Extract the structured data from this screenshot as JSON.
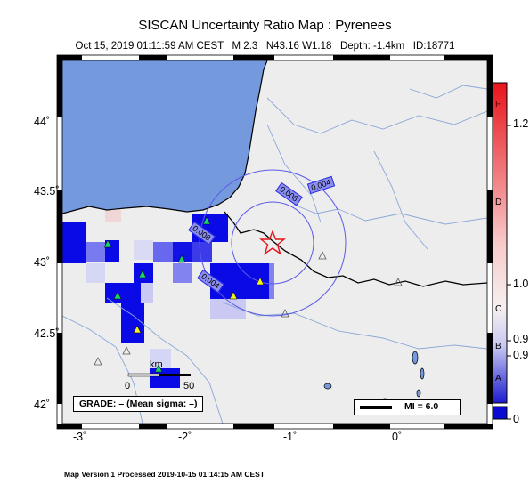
{
  "title": "SISCAN Uncertainty Ratio Map : Pyrenees",
  "subtitle": "Oct 15, 2019 01:11:59 AM CEST   M 2.3   N43.16 W1.18   Depth: -1.4km   ID:18771",
  "footer": "Map Version 1 Processed 2019-10-15 01:14:15 AM CEST",
  "axes": {
    "lat_labels": [
      "44˚",
      "43.5˚",
      "43˚",
      "42.5˚",
      "42˚"
    ],
    "lon_labels": [
      "-3˚",
      "-2˚",
      "-1˚",
      "0˚"
    ]
  },
  "colorbar": {
    "letter_labels": [
      "F",
      "D",
      "C",
      "B",
      "A"
    ],
    "value_labels": [
      "1.2",
      "1.0",
      "0.9",
      "0.9",
      "0"
    ],
    "colors": {
      "top": "#e8141b",
      "middle": "#f7f0f0",
      "bottom": "#1b1bcf",
      "base": "#0a0ad2"
    }
  },
  "contour_labels": [
    "0.004",
    "0.008",
    "0.008",
    "0.004"
  ],
  "scale": {
    "start": "0",
    "end": "50",
    "unit": "km"
  },
  "grade_label": "GRADE: – (Mean sigma: –)",
  "mi_label": "MI = 6.0",
  "colors": {
    "sea": "#7499dd",
    "land": "#ededed",
    "grid_cell_blue": "#0a0ae6",
    "epicenter": "#e8141b",
    "river": "#8aa6d8"
  }
}
